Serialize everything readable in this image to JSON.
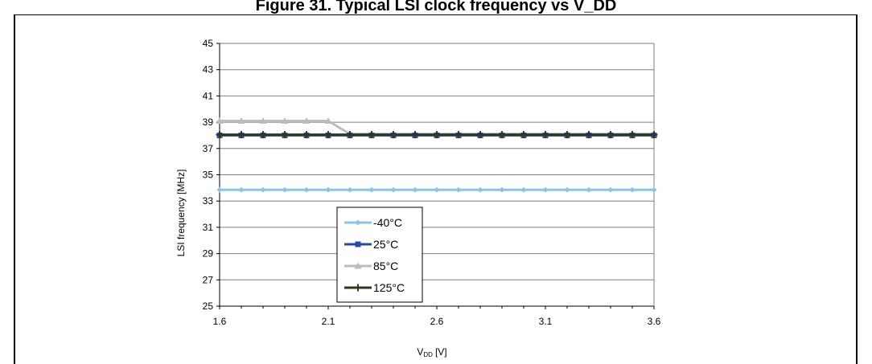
{
  "page": {
    "title": "Figure 31. Typical LSI clock frequency vs V_DD"
  },
  "chart_data": {
    "type": "line",
    "xlabel_main": "V",
    "xlabel_sub": "DD",
    "xlabel_unit": "[V]",
    "ylabel": "LSI frequency [MHz]",
    "xlim": [
      1.6,
      3.6
    ],
    "ylim": [
      25,
      45
    ],
    "x_ticks": [
      "1.6",
      "2.1",
      "2.6",
      "3.1",
      "3.6"
    ],
    "y_ticks": [
      "25",
      "27",
      "29",
      "31",
      "33",
      "35",
      "37",
      "39",
      "41",
      "43",
      "45"
    ],
    "grid": "horizontal",
    "legend_position": "inside-lower-left",
    "x": [
      1.6,
      1.7,
      1.8,
      1.9,
      2.0,
      2.1,
      2.2,
      2.3,
      2.4,
      2.5,
      2.6,
      2.7,
      2.8,
      2.9,
      3.0,
      3.1,
      3.2,
      3.3,
      3.4,
      3.5,
      3.6
    ],
    "series": [
      {
        "name": "-40°C",
        "color": "#8fc3e6",
        "marker": "diamond",
        "values": [
          33.85,
          33.85,
          33.85,
          33.85,
          33.85,
          33.85,
          33.85,
          33.85,
          33.85,
          33.85,
          33.85,
          33.85,
          33.85,
          33.85,
          33.85,
          33.85,
          33.85,
          33.85,
          33.85,
          33.85,
          33.85
        ]
      },
      {
        "name": "25°C",
        "color": "#2e4a9e",
        "marker": "square",
        "values": [
          38.0,
          38.0,
          38.0,
          38.0,
          38.0,
          38.0,
          38.0,
          38.0,
          38.0,
          38.0,
          38.0,
          38.0,
          38.0,
          38.0,
          38.0,
          38.0,
          38.0,
          38.0,
          38.0,
          38.0,
          38.0
        ]
      },
      {
        "name": "85°C",
        "color": "#bdbdbd",
        "marker": "triangle",
        "values": [
          39.1,
          39.1,
          39.1,
          39.1,
          39.1,
          39.1,
          38.1,
          38.1,
          38.1,
          38.1,
          38.1,
          38.1,
          38.1,
          38.1,
          38.1,
          38.1,
          38.1,
          38.1,
          38.1,
          38.1,
          38.1
        ]
      },
      {
        "name": "125°C",
        "color": "#2b3a1a",
        "marker": "plus",
        "values": [
          38.05,
          38.05,
          38.05,
          38.05,
          38.05,
          38.05,
          38.05,
          38.05,
          38.05,
          38.05,
          38.05,
          38.05,
          38.05,
          38.05,
          38.05,
          38.05,
          38.05,
          38.05,
          38.05,
          38.05,
          38.05
        ]
      }
    ]
  }
}
